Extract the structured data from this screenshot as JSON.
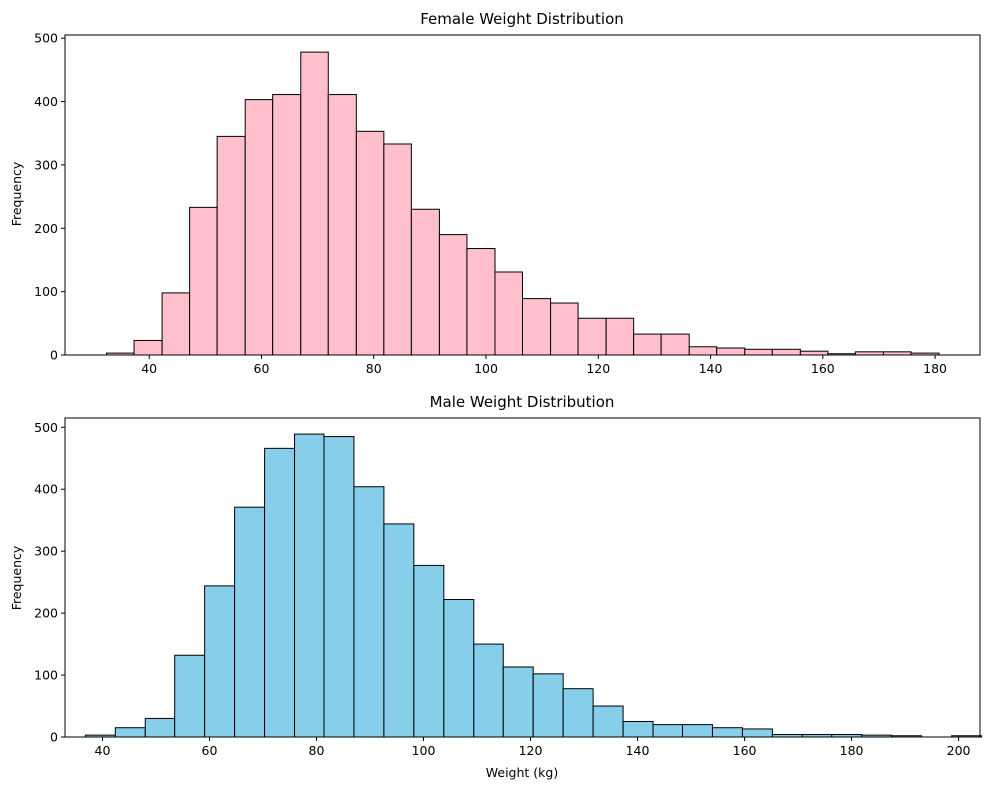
{
  "chart_data": [
    {
      "type": "bar",
      "title": "Female Weight Distribution",
      "xlabel": "",
      "ylabel": "Frequency",
      "xlim": [
        25,
        188
      ],
      "ylim": [
        0,
        505
      ],
      "xticks": [
        40,
        60,
        80,
        100,
        120,
        140,
        160,
        180
      ],
      "yticks": [
        0,
        100,
        200,
        300,
        400,
        500
      ],
      "bin_edges": [
        32.4,
        37.3,
        42.3,
        47.2,
        52.1,
        57.1,
        62.0,
        67.0,
        71.9,
        76.9,
        81.8,
        86.7,
        91.7,
        96.6,
        101.6,
        106.5,
        111.5,
        116.4,
        121.4,
        126.3,
        131.2,
        136.2,
        141.1,
        146.1,
        151.0,
        156.0,
        160.9,
        165.8,
        170.8,
        175.7,
        180.7
      ],
      "values": [
        3,
        23,
        98,
        233,
        345,
        403,
        411,
        478,
        411,
        353,
        333,
        230,
        190,
        168,
        131,
        89,
        82,
        58,
        58,
        33,
        33,
        13,
        11,
        9,
        9,
        6,
        2,
        5,
        5,
        3
      ],
      "color": "#ffc0cb",
      "edgecolor": "#000000",
      "grid": false
    },
    {
      "type": "bar",
      "title": "Male Weight Distribution",
      "xlabel": "Weight (kg)",
      "ylabel": "Frequency",
      "xlim": [
        33,
        204
      ],
      "ylim": [
        0,
        515
      ],
      "xticks": [
        40,
        60,
        80,
        100,
        120,
        140,
        160,
        180,
        200
      ],
      "yticks": [
        0,
        100,
        200,
        300,
        400,
        500
      ],
      "bin_edges": [
        36.8,
        42.4,
        48.0,
        53.5,
        59.1,
        64.7,
        70.3,
        75.9,
        81.4,
        87.0,
        92.6,
        98.2,
        103.8,
        109.4,
        114.9,
        120.5,
        126.1,
        131.7,
        137.3,
        142.9,
        148.4,
        154.0,
        159.6,
        165.2,
        170.8,
        176.3,
        181.9,
        187.5,
        193.1,
        198.7,
        204.3
      ],
      "values": [
        3,
        15,
        30,
        132,
        244,
        371,
        466,
        489,
        485,
        404,
        344,
        277,
        222,
        150,
        113,
        102,
        78,
        50,
        25,
        20,
        20,
        15,
        13,
        4,
        4,
        4,
        3,
        2,
        0,
        2
      ],
      "color": "#87ceeb",
      "edgecolor": "#000000",
      "grid": false
    }
  ]
}
